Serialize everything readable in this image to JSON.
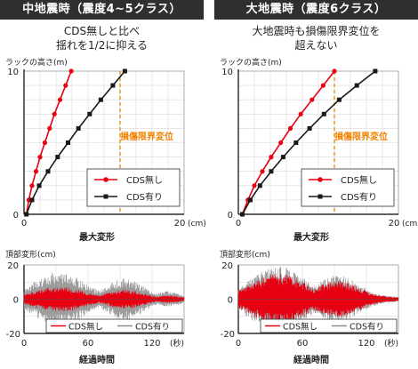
{
  "panels": [
    {
      "id": "medium",
      "header": "中地震時（震度4~5クラス）",
      "subtitle_lines": [
        "CDS無しと比べ",
        "揺れを1/2に抑える"
      ]
    },
    {
      "id": "large",
      "header": "大地震時（震度6クラス）",
      "subtitle_lines": [
        "大地震時も損傷限界変位を",
        "超えない"
      ]
    }
  ],
  "colors": {
    "red": "#e60012",
    "black": "#1a1a1a",
    "gray": "#8c8c8c",
    "orange": "#f08300",
    "header_bg": "#2f2f2f"
  },
  "chart_data": [
    {
      "type": "line",
      "panel": "medium",
      "title": "",
      "ylabel": "ラックの高さ(m)",
      "xlabel": "最大変形",
      "x_unit": "(cm)",
      "xlim": [
        0,
        20
      ],
      "ylim": [
        0,
        10
      ],
      "x_ticks": [
        "0",
        "20"
      ],
      "y_ticks": [
        "0",
        "10"
      ],
      "grid": true,
      "legend_position": "bottom-right",
      "threshold": {
        "x": 12,
        "label": "損傷限界変位"
      },
      "series": [
        {
          "name": "CDS無し",
          "marker": "circle",
          "color": "#e60012",
          "points": [
            [
              0.3,
              0
            ],
            [
              0.6,
              1
            ],
            [
              1.0,
              2
            ],
            [
              1.5,
              3
            ],
            [
              2.0,
              4
            ],
            [
              2.6,
              5
            ],
            [
              3.2,
              6
            ],
            [
              3.8,
              7
            ],
            [
              4.5,
              8
            ],
            [
              5.2,
              9
            ],
            [
              5.9,
              10
            ]
          ]
        },
        {
          "name": "CDS有り",
          "marker": "square",
          "color": "#1a1a1a",
          "points": [
            [
              0.3,
              0
            ],
            [
              1.0,
              1
            ],
            [
              1.9,
              2
            ],
            [
              3.0,
              3
            ],
            [
              4.2,
              4
            ],
            [
              5.5,
              5
            ],
            [
              6.8,
              6
            ],
            [
              8.2,
              7
            ],
            [
              9.6,
              8
            ],
            [
              11.1,
              9
            ],
            [
              12.6,
              10
            ]
          ]
        }
      ]
    },
    {
      "type": "line",
      "panel": "large",
      "title": "",
      "ylabel": "ラックの高さ(m)",
      "xlabel": "最大変形",
      "x_unit": "(cm)",
      "xlim": [
        0,
        20
      ],
      "ylim": [
        0,
        10
      ],
      "x_ticks": [
        "0",
        "20"
      ],
      "y_ticks": [
        "0",
        "10"
      ],
      "grid": true,
      "legend_position": "bottom-right",
      "threshold": {
        "x": 12,
        "label": "損傷限界変位"
      },
      "series": [
        {
          "name": "CDS無し",
          "marker": "circle",
          "color": "#e60012",
          "points": [
            [
              0.5,
              0
            ],
            [
              1.2,
              1
            ],
            [
              2.0,
              2
            ],
            [
              3.0,
              3
            ],
            [
              4.1,
              4
            ],
            [
              5.3,
              5
            ],
            [
              6.5,
              6
            ],
            [
              7.8,
              7
            ],
            [
              9.2,
              8
            ],
            [
              10.6,
              9
            ],
            [
              12.0,
              10
            ]
          ]
        },
        {
          "name": "CDS有り",
          "marker": "square",
          "color": "#1a1a1a",
          "points": [
            [
              0.5,
              0
            ],
            [
              1.5,
              1
            ],
            [
              2.7,
              2
            ],
            [
              4.1,
              3
            ],
            [
              5.6,
              4
            ],
            [
              7.2,
              5
            ],
            [
              8.9,
              6
            ],
            [
              10.7,
              7
            ],
            [
              12.6,
              8
            ],
            [
              14.8,
              9
            ],
            [
              17.1,
              10
            ]
          ]
        }
      ]
    },
    {
      "type": "line",
      "panel": "medium",
      "title": "",
      "ylabel": "頂部変形(cm)",
      "xlabel": "経過時間",
      "x_unit": "(秒)",
      "xlim": [
        0,
        150
      ],
      "ylim": [
        -20,
        20
      ],
      "x_ticks": [
        "0",
        "60",
        "120"
      ],
      "y_ticks": [
        "20",
        "0",
        "-20"
      ],
      "grid": true,
      "legend_position": "bottom-right",
      "series": [
        {
          "name": "CDS無し",
          "color": "#e60012",
          "amplitude": 7
        },
        {
          "name": "CDS有り",
          "color": "#8c8c8c",
          "amplitude": 15
        }
      ]
    },
    {
      "type": "line",
      "panel": "large",
      "title": "",
      "ylabel": "頂部変形(cm)",
      "xlabel": "経過時間",
      "x_unit": "(秒)",
      "xlim": [
        0,
        150
      ],
      "ylim": [
        -20,
        20
      ],
      "x_ticks": [
        "0",
        "60",
        "120"
      ],
      "y_ticks": [
        "20",
        "0",
        "-20"
      ],
      "grid": true,
      "legend_position": "bottom-right",
      "series": [
        {
          "name": "CDS無し",
          "color": "#e60012",
          "amplitude": 14
        },
        {
          "name": "CDS有り",
          "color": "#8c8c8c",
          "amplitude": 18
        }
      ]
    }
  ]
}
